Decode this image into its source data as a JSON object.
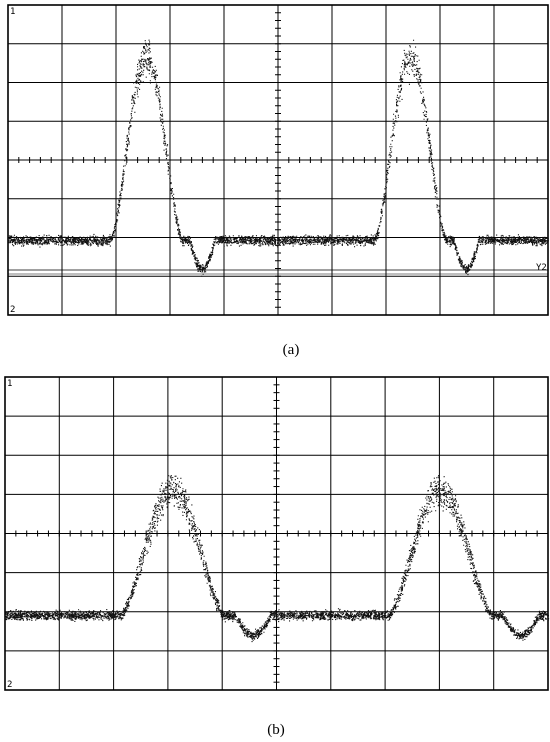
{
  "panels": [
    {
      "caption": "(a)",
      "top_marker": "1",
      "bottom_marker": "2",
      "reference_label": "Y2"
    },
    {
      "caption": "(b)",
      "top_marker": "1",
      "bottom_marker": "2"
    }
  ]
}
